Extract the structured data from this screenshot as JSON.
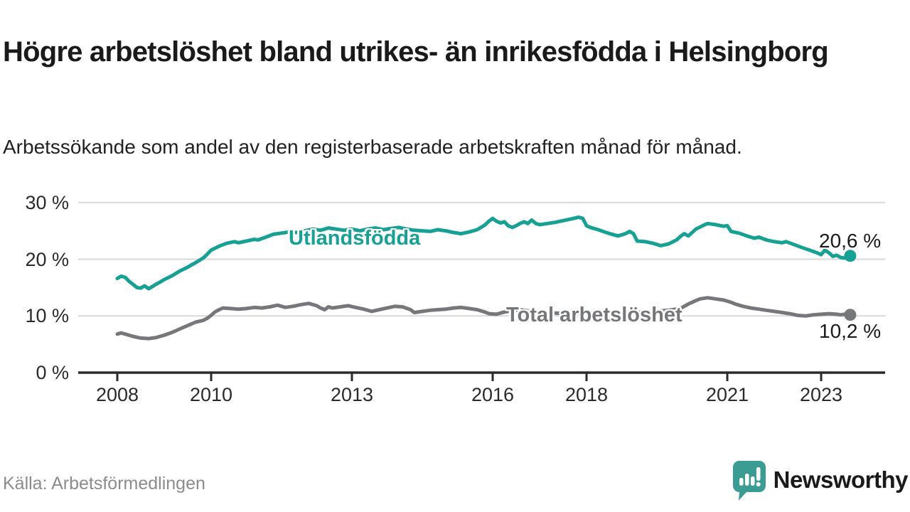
{
  "header": {
    "title": "Högre arbetslöshet bland utrikes- än inrikesfödda i Helsingborg",
    "subtitle": "Arbetssökande som andel av den registerbaserade arbetskraften månad för månad."
  },
  "footer": {
    "source": "Källa: Arbetsförmedlingen",
    "brand": "Newsworthy"
  },
  "colors": {
    "teal_line": "#17a094",
    "gray_line": "#76777a",
    "grid": "#d9d9d9",
    "axis": "#2b2b2b",
    "title_text": "#1a1a1a",
    "source_text": "#8c8c8c",
    "brand_teal": "#389b94"
  },
  "chart_data": {
    "type": "line",
    "title": "Högre arbetslöshet bland utrikes- än inrikesfödda i Helsingborg",
    "xlabel": "",
    "ylabel": "",
    "x_range": [
      2007.8,
      2024.3
    ],
    "ylim": [
      0,
      30
    ],
    "grid": "horizontal",
    "legend_position": "inline-on-line",
    "x_ticks": [
      2008,
      2010,
      2013,
      2016,
      2018,
      2021,
      2023
    ],
    "x_tick_labels": [
      "2008",
      "2010",
      "2013",
      "2016",
      "2018",
      "2021",
      "2023"
    ],
    "y_ticks": [
      0,
      10,
      20,
      30
    ],
    "y_tick_labels": [
      "0 %",
      "10 %",
      "20 %",
      "30 %"
    ],
    "series": [
      {
        "name": "Utlandsfödda",
        "label": "Utlandsfödda",
        "color": "#17a094",
        "end_label": "20,6 %",
        "last_value": 20.6,
        "points": [
          [
            2008.0,
            16.6
          ],
          [
            2008.08,
            17.0
          ],
          [
            2008.17,
            16.8
          ],
          [
            2008.25,
            16.1
          ],
          [
            2008.33,
            15.6
          ],
          [
            2008.42,
            15.0
          ],
          [
            2008.5,
            14.9
          ],
          [
            2008.58,
            15.3
          ],
          [
            2008.67,
            14.8
          ],
          [
            2008.75,
            15.2
          ],
          [
            2008.83,
            15.6
          ],
          [
            2008.92,
            16.0
          ],
          [
            2009.0,
            16.4
          ],
          [
            2009.17,
            17.1
          ],
          [
            2009.33,
            17.9
          ],
          [
            2009.5,
            18.6
          ],
          [
            2009.67,
            19.4
          ],
          [
            2009.83,
            20.2
          ],
          [
            2009.92,
            20.9
          ],
          [
            2010.0,
            21.6
          ],
          [
            2010.17,
            22.3
          ],
          [
            2010.33,
            22.8
          ],
          [
            2010.5,
            23.1
          ],
          [
            2010.58,
            22.9
          ],
          [
            2010.75,
            23.2
          ],
          [
            2010.92,
            23.5
          ],
          [
            2011.0,
            23.4
          ],
          [
            2011.17,
            23.9
          ],
          [
            2011.33,
            24.4
          ],
          [
            2011.5,
            24.6
          ],
          [
            2011.67,
            24.8
          ],
          [
            2011.83,
            24.7
          ],
          [
            2012.0,
            25.0
          ],
          [
            2012.17,
            25.3
          ],
          [
            2012.33,
            25.1
          ],
          [
            2012.5,
            25.5
          ],
          [
            2012.67,
            25.3
          ],
          [
            2012.83,
            25.1
          ],
          [
            2013.0,
            25.3
          ],
          [
            2013.17,
            25.0
          ],
          [
            2013.33,
            25.3
          ],
          [
            2013.5,
            25.5
          ],
          [
            2013.67,
            25.2
          ],
          [
            2013.83,
            25.4
          ],
          [
            2014.0,
            25.6
          ],
          [
            2014.17,
            25.3
          ],
          [
            2014.33,
            25.1
          ],
          [
            2014.5,
            25.0
          ],
          [
            2014.67,
            24.9
          ],
          [
            2014.83,
            25.2
          ],
          [
            2015.0,
            25.0
          ],
          [
            2015.17,
            24.7
          ],
          [
            2015.33,
            24.5
          ],
          [
            2015.5,
            24.8
          ],
          [
            2015.67,
            25.2
          ],
          [
            2015.83,
            26.0
          ],
          [
            2015.92,
            26.7
          ],
          [
            2016.0,
            27.2
          ],
          [
            2016.08,
            26.7
          ],
          [
            2016.17,
            26.4
          ],
          [
            2016.25,
            26.6
          ],
          [
            2016.33,
            25.9
          ],
          [
            2016.42,
            25.6
          ],
          [
            2016.5,
            25.9
          ],
          [
            2016.58,
            26.3
          ],
          [
            2016.67,
            26.6
          ],
          [
            2016.75,
            26.3
          ],
          [
            2016.83,
            26.9
          ],
          [
            2016.92,
            26.3
          ],
          [
            2017.0,
            26.1
          ],
          [
            2017.17,
            26.3
          ],
          [
            2017.33,
            26.5
          ],
          [
            2017.5,
            26.8
          ],
          [
            2017.67,
            27.1
          ],
          [
            2017.83,
            27.4
          ],
          [
            2017.92,
            27.2
          ],
          [
            2018.0,
            25.9
          ],
          [
            2018.08,
            25.6
          ],
          [
            2018.25,
            25.2
          ],
          [
            2018.42,
            24.7
          ],
          [
            2018.58,
            24.3
          ],
          [
            2018.67,
            24.1
          ],
          [
            2018.83,
            24.5
          ],
          [
            2018.92,
            24.9
          ],
          [
            2019.0,
            24.5
          ],
          [
            2019.08,
            23.2
          ],
          [
            2019.25,
            23.1
          ],
          [
            2019.42,
            22.8
          ],
          [
            2019.58,
            22.4
          ],
          [
            2019.75,
            22.7
          ],
          [
            2019.92,
            23.4
          ],
          [
            2020.0,
            24.0
          ],
          [
            2020.08,
            24.5
          ],
          [
            2020.17,
            24.1
          ],
          [
            2020.33,
            25.3
          ],
          [
            2020.5,
            26.0
          ],
          [
            2020.58,
            26.3
          ],
          [
            2020.75,
            26.1
          ],
          [
            2020.92,
            25.8
          ],
          [
            2021.0,
            25.9
          ],
          [
            2021.08,
            24.9
          ],
          [
            2021.25,
            24.6
          ],
          [
            2021.42,
            24.1
          ],
          [
            2021.58,
            23.7
          ],
          [
            2021.67,
            23.9
          ],
          [
            2021.83,
            23.4
          ],
          [
            2022.0,
            23.1
          ],
          [
            2022.17,
            22.9
          ],
          [
            2022.25,
            23.1
          ],
          [
            2022.42,
            22.6
          ],
          [
            2022.58,
            22.1
          ],
          [
            2022.75,
            21.6
          ],
          [
            2022.92,
            21.1
          ],
          [
            2023.0,
            20.8
          ],
          [
            2023.08,
            21.6
          ],
          [
            2023.17,
            21.1
          ],
          [
            2023.25,
            20.5
          ],
          [
            2023.33,
            20.7
          ],
          [
            2023.42,
            20.3
          ],
          [
            2023.5,
            20.2
          ],
          [
            2023.58,
            20.4
          ],
          [
            2023.62,
            20.6
          ]
        ]
      },
      {
        "name": "Total arbetslöshet",
        "label": "Total arbetslöshet",
        "color": "#76777a",
        "end_label": "10,2 %",
        "last_value": 10.2,
        "points": [
          [
            2008.0,
            6.8
          ],
          [
            2008.08,
            7.0
          ],
          [
            2008.17,
            6.8
          ],
          [
            2008.33,
            6.4
          ],
          [
            2008.5,
            6.1
          ],
          [
            2008.67,
            6.0
          ],
          [
            2008.83,
            6.2
          ],
          [
            2009.0,
            6.6
          ],
          [
            2009.17,
            7.1
          ],
          [
            2009.33,
            7.7
          ],
          [
            2009.5,
            8.3
          ],
          [
            2009.67,
            8.9
          ],
          [
            2009.83,
            9.2
          ],
          [
            2009.92,
            9.6
          ],
          [
            2010.0,
            10.1
          ],
          [
            2010.08,
            10.7
          ],
          [
            2010.17,
            11.1
          ],
          [
            2010.25,
            11.4
          ],
          [
            2010.42,
            11.3
          ],
          [
            2010.58,
            11.2
          ],
          [
            2010.75,
            11.3
          ],
          [
            2010.92,
            11.5
          ],
          [
            2011.08,
            11.4
          ],
          [
            2011.25,
            11.6
          ],
          [
            2011.42,
            11.9
          ],
          [
            2011.58,
            11.5
          ],
          [
            2011.75,
            11.7
          ],
          [
            2011.92,
            12.0
          ],
          [
            2012.08,
            12.2
          ],
          [
            2012.25,
            11.8
          ],
          [
            2012.33,
            11.4
          ],
          [
            2012.42,
            11.1
          ],
          [
            2012.5,
            11.6
          ],
          [
            2012.58,
            11.4
          ],
          [
            2012.75,
            11.6
          ],
          [
            2012.92,
            11.8
          ],
          [
            2013.08,
            11.5
          ],
          [
            2013.25,
            11.2
          ],
          [
            2013.42,
            10.8
          ],
          [
            2013.58,
            11.1
          ],
          [
            2013.75,
            11.4
          ],
          [
            2013.92,
            11.7
          ],
          [
            2014.08,
            11.6
          ],
          [
            2014.25,
            11.1
          ],
          [
            2014.33,
            10.6
          ],
          [
            2014.5,
            10.8
          ],
          [
            2014.67,
            11.0
          ],
          [
            2014.83,
            11.1
          ],
          [
            2015.0,
            11.2
          ],
          [
            2015.17,
            11.4
          ],
          [
            2015.33,
            11.5
          ],
          [
            2015.5,
            11.3
          ],
          [
            2015.67,
            11.1
          ],
          [
            2015.83,
            10.7
          ],
          [
            2015.92,
            10.4
          ],
          [
            2016.08,
            10.3
          ],
          [
            2016.25,
            10.7
          ],
          [
            2016.42,
            10.9
          ],
          [
            2016.58,
            11.1
          ],
          [
            2016.75,
            10.9
          ],
          [
            2016.92,
            10.7
          ],
          [
            2017.08,
            10.6
          ],
          [
            2017.33,
            10.5
          ],
          [
            2017.58,
            10.4
          ],
          [
            2017.83,
            10.5
          ],
          [
            2018.0,
            10.6
          ],
          [
            2018.25,
            10.4
          ],
          [
            2018.5,
            10.3
          ],
          [
            2018.75,
            10.5
          ],
          [
            2019.0,
            10.6
          ],
          [
            2019.25,
            10.7
          ],
          [
            2019.5,
            10.8
          ],
          [
            2019.75,
            11.0
          ],
          [
            2020.0,
            11.3
          ],
          [
            2020.17,
            12.1
          ],
          [
            2020.33,
            12.7
          ],
          [
            2020.42,
            13.0
          ],
          [
            2020.58,
            13.2
          ],
          [
            2020.75,
            13.0
          ],
          [
            2020.92,
            12.8
          ],
          [
            2021.0,
            12.6
          ],
          [
            2021.08,
            12.4
          ],
          [
            2021.17,
            12.1
          ],
          [
            2021.33,
            11.7
          ],
          [
            2021.5,
            11.4
          ],
          [
            2021.67,
            11.2
          ],
          [
            2021.83,
            11.0
          ],
          [
            2022.0,
            10.8
          ],
          [
            2022.17,
            10.6
          ],
          [
            2022.33,
            10.4
          ],
          [
            2022.5,
            10.1
          ],
          [
            2022.67,
            10.0
          ],
          [
            2022.83,
            10.2
          ],
          [
            2023.0,
            10.3
          ],
          [
            2023.17,
            10.4
          ],
          [
            2023.33,
            10.3
          ],
          [
            2023.42,
            10.2
          ],
          [
            2023.5,
            10.3
          ],
          [
            2023.62,
            10.2
          ]
        ]
      }
    ]
  }
}
